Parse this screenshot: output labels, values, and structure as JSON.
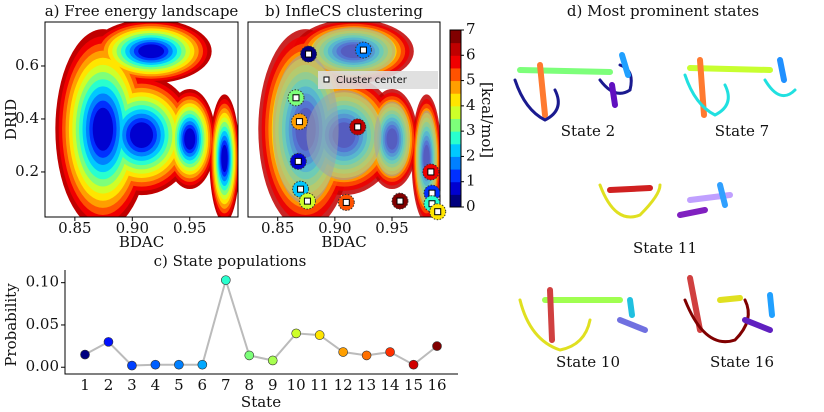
{
  "chart_data": [
    {
      "type": "contour",
      "title": "a) Free energy landscape",
      "xlabel": "BDAC",
      "ylabel": "DRID",
      "xlim": [
        0.824,
        0.992
      ],
      "ylim": [
        0.03,
        0.766
      ],
      "xticks": [
        0.85,
        {
          "value": 0.9,
          "label": "0.90"
        },
        0.95
      ],
      "yticks": [
        0.2,
        0.4,
        0.6
      ]
    },
    {
      "type": "scatter",
      "title": "b) InfleCS clustering",
      "xlabel": "BDAC",
      "xlim": [
        0.824,
        0.992
      ],
      "ylim": [
        0.03,
        0.766
      ],
      "xticks": [
        0.85,
        {
          "value": 0.9,
          "label": "0.90"
        },
        0.95
      ],
      "series": [
        {
          "name": "Cluster center",
          "color": "#ffffff",
          "x": [
            0.877,
            0.925,
            0.866,
            0.869,
            0.92,
            0.868,
            0.87,
            0.876,
            0.91,
            0.957,
            0.985,
            0.985,
            0.99,
            0.984
          ],
          "y": [
            0.645,
            0.66,
            0.48,
            0.39,
            0.37,
            0.24,
            0.135,
            0.09,
            0.085,
            0.09,
            0.12,
            0.08,
            0.05,
            0.2
          ]
        }
      ],
      "colorbar": {
        "label": "[kcal/mol]",
        "lim": [
          0,
          7
        ],
        "ticks": [
          0,
          1,
          2,
          3,
          4,
          5,
          6,
          7
        ],
        "colors": [
          "#00007f",
          "#0000d0",
          "#0030ff",
          "#0080ff",
          "#00c8ff",
          "#29ffce",
          "#7dff7a",
          "#ceff29",
          "#ffe500",
          "#ff9f00",
          "#ff5200",
          "#f00000",
          "#c00000",
          "#800000"
        ]
      }
    },
    {
      "type": "line",
      "title": "c) State populations",
      "xlabel": "State",
      "ylabel": "Probability",
      "categories": [
        "1",
        "2",
        "3",
        "4",
        "5",
        "6",
        "7",
        "8",
        "9",
        "10",
        "11",
        "12",
        "13",
        "14",
        "15",
        "16"
      ],
      "values": [
        0.015,
        0.03,
        0.002,
        0.003,
        0.003,
        0.003,
        0.103,
        0.014,
        0.008,
        0.04,
        0.038,
        0.018,
        0.014,
        0.018,
        0.003,
        0.025
      ],
      "colors": [
        "#00007f",
        "#0010ff",
        "#0040ff",
        "#0060ff",
        "#0080ff",
        "#00a8ff",
        "#29ffce",
        "#7dff7a",
        "#a8ff50",
        "#ceff29",
        "#ffe500",
        "#ff9f00",
        "#ff7000",
        "#ff3000",
        "#d00000",
        "#800000"
      ],
      "line_color": "#bbbbbb",
      "ylim": [
        -0.008,
        0.115
      ],
      "yticks": [
        {
          "value": 0,
          "label": "0.00"
        },
        {
          "value": 0.05,
          "label": "0.05"
        },
        {
          "value": 0.1,
          "label": "0.10"
        }
      ]
    }
  ],
  "states_panel": {
    "title": "d) Most prominent states",
    "labels": [
      "State 2",
      "State 7",
      "State 11",
      "State 10",
      "State 16"
    ]
  }
}
